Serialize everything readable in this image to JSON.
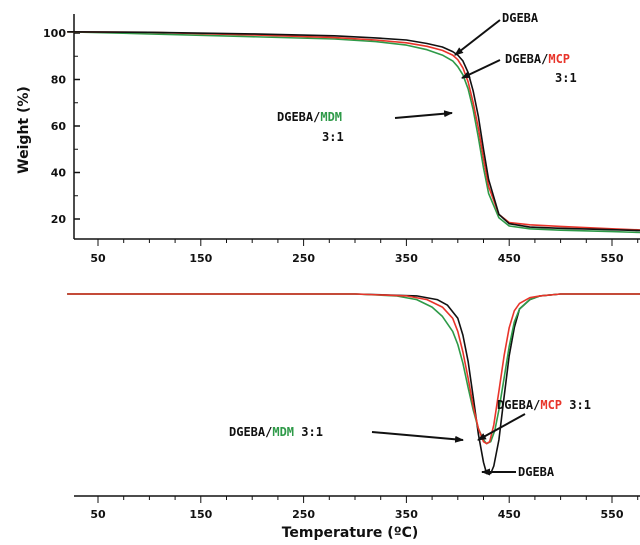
{
  "colors": {
    "dgeba": "#111111",
    "mcp": "#e8342a",
    "mdm": "#2e9a48",
    "axis": "#111111"
  },
  "chart_data": [
    {
      "type": "line",
      "ylabel": "Weight (%)",
      "xlabel": "",
      "xlim": [
        20,
        600
      ],
      "ylim": [
        12,
        105
      ],
      "x_ticks": [
        50,
        150,
        250,
        350,
        450,
        550
      ],
      "y_ticks": [
        20,
        40,
        60,
        80,
        100
      ],
      "series": [
        {
          "name": "DGEBA",
          "color": "#111111",
          "x": [
            20,
            100,
            200,
            280,
            320,
            350,
            370,
            385,
            395,
            400,
            405,
            410,
            415,
            420,
            425,
            430,
            440,
            450,
            470,
            500,
            550,
            600
          ],
          "y": [
            100.5,
            100.3,
            99.6,
            98.8,
            97.9,
            97,
            95.5,
            94,
            92,
            90.5,
            88,
            83,
            75,
            64,
            50,
            37,
            22,
            18,
            16.5,
            16,
            15.4,
            15
          ]
        },
        {
          "name": "DGEBA/MCP 3:1",
          "color": "#e8342a",
          "x": [
            20,
            100,
            200,
            280,
            320,
            350,
            370,
            385,
            395,
            400,
            405,
            410,
            415,
            420,
            425,
            430,
            440,
            450,
            470,
            500,
            550,
            600
          ],
          "y": [
            100.5,
            100.3,
            99.2,
            98,
            97,
            95.8,
            94.3,
            92.5,
            90.5,
            88.5,
            85,
            79,
            70,
            59,
            46,
            34,
            22,
            18.5,
            17.5,
            16.8,
            15.8,
            15.3
          ]
        },
        {
          "name": "DGEBA/MDM 3:1",
          "color": "#2e9a48",
          "x": [
            20,
            100,
            200,
            280,
            320,
            350,
            370,
            385,
            395,
            400,
            405,
            410,
            415,
            420,
            425,
            430,
            440,
            450,
            470,
            500,
            550,
            600
          ],
          "y": [
            100.5,
            99.6,
            98.4,
            97.4,
            96.3,
            94.8,
            92.8,
            90.5,
            88,
            85.5,
            82,
            76,
            67,
            55,
            42,
            31,
            20.5,
            17,
            15.8,
            15.2,
            14.6,
            14.2
          ]
        }
      ],
      "annotations": [
        {
          "parts": [
            {
              "text": "DGEBA",
              "color": "#111111"
            }
          ]
        },
        {
          "parts": [
            {
              "text": "DGEBA/",
              "color": "#111111"
            },
            {
              "text": "MCP",
              "color": "#e8342a"
            }
          ],
          "line2": "3:1"
        },
        {
          "parts": [
            {
              "text": "DGEBA/",
              "color": "#111111"
            },
            {
              "text": "MDM",
              "color": "#2e9a48"
            }
          ],
          "line2": "3:1"
        }
      ]
    },
    {
      "type": "line",
      "xlabel": "Temperature (ºC)",
      "ylabel": "",
      "xlim": [
        20,
        600
      ],
      "ylim": [
        0,
        1
      ],
      "x_ticks": [
        50,
        150,
        250,
        350,
        450,
        550
      ],
      "series": [
        {
          "name": "DGEBA",
          "color": "#111111",
          "x": [
            20,
            200,
            300,
            360,
            380,
            390,
            400,
            405,
            410,
            415,
            420,
            425,
            428,
            432,
            435,
            440,
            445,
            450,
            455,
            460,
            470,
            480,
            500,
            600
          ],
          "y": [
            0,
            0,
            0,
            0.01,
            0.03,
            0.06,
            0.13,
            0.22,
            0.36,
            0.55,
            0.75,
            0.9,
            0.96,
            0.96,
            0.92,
            0.78,
            0.55,
            0.33,
            0.18,
            0.08,
            0.03,
            0.01,
            0,
            0
          ]
        },
        {
          "name": "DGEBA/MCP 3:1",
          "color": "#e8342a",
          "x": [
            20,
            200,
            300,
            350,
            370,
            385,
            395,
            400,
            405,
            410,
            415,
            420,
            425,
            428,
            431,
            435,
            440,
            445,
            450,
            455,
            460,
            470,
            480,
            500,
            600
          ],
          "y": [
            0,
            0,
            0,
            0.01,
            0.03,
            0.07,
            0.13,
            0.2,
            0.31,
            0.45,
            0.6,
            0.72,
            0.79,
            0.8,
            0.79,
            0.7,
            0.52,
            0.33,
            0.18,
            0.09,
            0.05,
            0.02,
            0.01,
            0,
            0
          ]
        },
        {
          "name": "DGEBA/MDM 3:1",
          "color": "#2e9a48",
          "x": [
            20,
            200,
            300,
            340,
            360,
            375,
            385,
            395,
            400,
            405,
            410,
            415,
            420,
            425,
            428,
            432,
            436,
            440,
            445,
            450,
            455,
            460,
            470,
            480,
            500,
            600
          ],
          "y": [
            0,
            0,
            0,
            0.01,
            0.03,
            0.07,
            0.12,
            0.2,
            0.27,
            0.37,
            0.5,
            0.62,
            0.72,
            0.78,
            0.8,
            0.79,
            0.73,
            0.62,
            0.45,
            0.28,
            0.15,
            0.08,
            0.03,
            0.01,
            0,
            0
          ]
        }
      ],
      "annotations": [
        {
          "parts": [
            {
              "text": "DGEBA/",
              "color": "#111111"
            },
            {
              "text": "MCP",
              "color": "#e8342a"
            },
            {
              "text": " 3:1",
              "color": "#111111"
            }
          ]
        },
        {
          "parts": [
            {
              "text": "DGEBA/",
              "color": "#111111"
            },
            {
              "text": "MDM",
              "color": "#2e9a48"
            },
            {
              "text": " 3:1",
              "color": "#111111"
            }
          ]
        },
        {
          "parts": [
            {
              "text": "DGEBA",
              "color": "#111111"
            }
          ]
        }
      ]
    }
  ]
}
